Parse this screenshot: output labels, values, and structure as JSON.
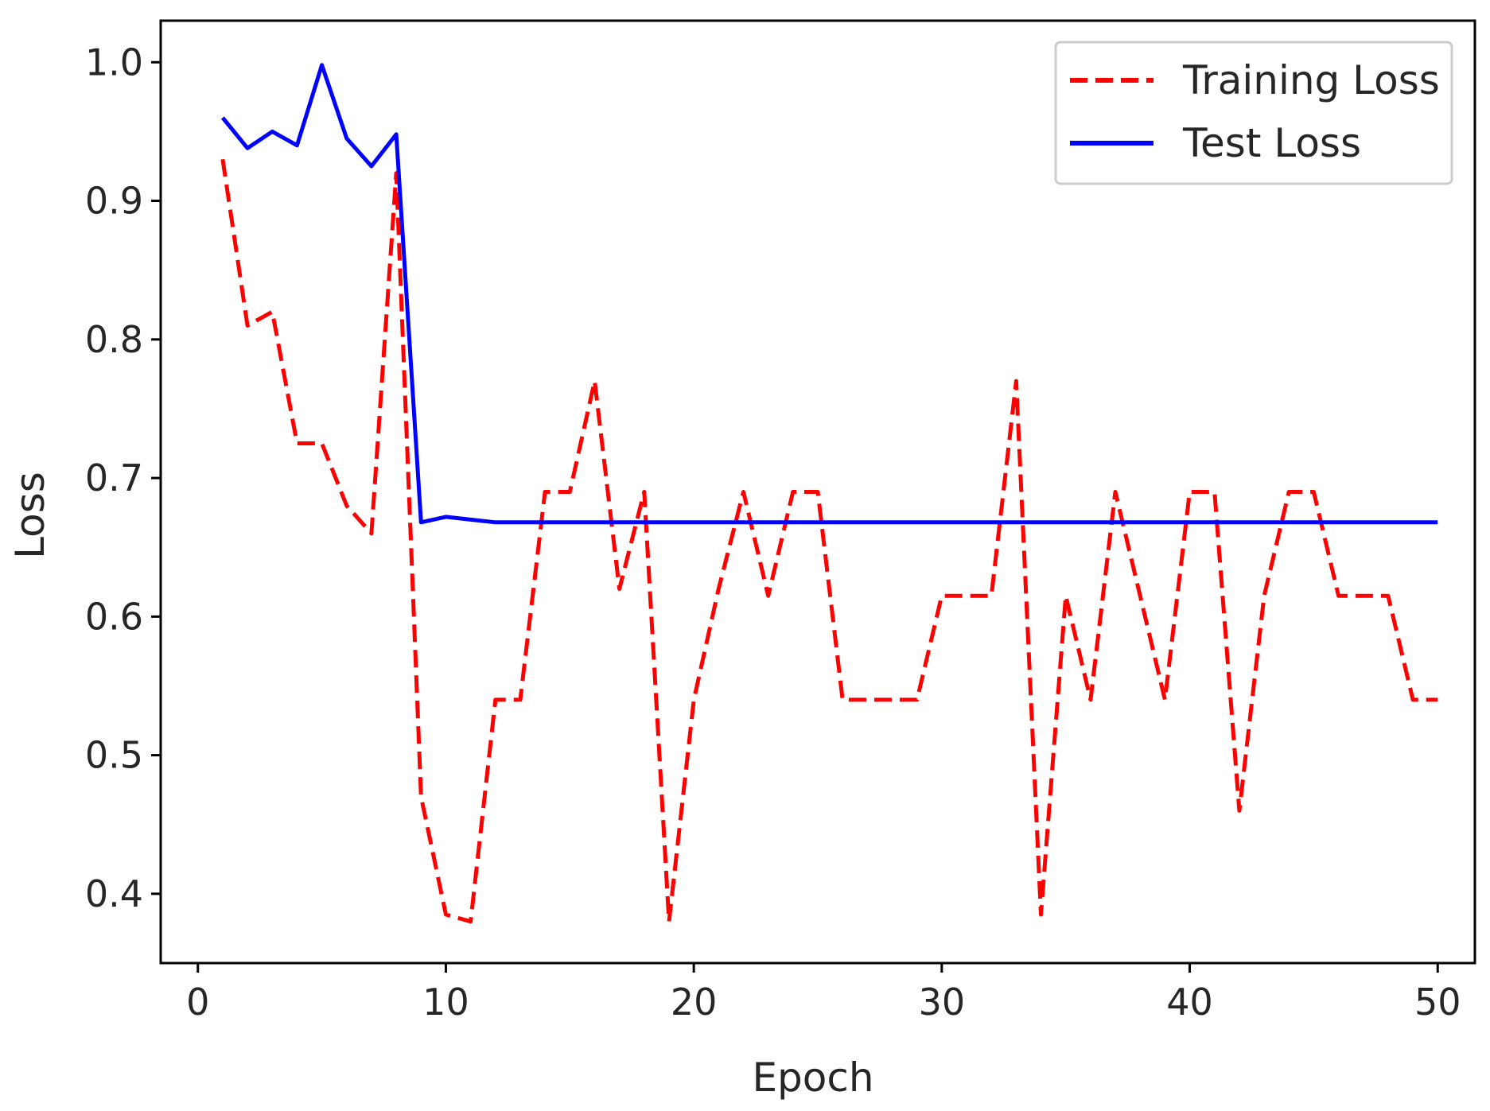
{
  "chart_data": {
    "type": "line",
    "title": "",
    "xlabel": "Epoch",
    "ylabel": "Loss",
    "xlim": [
      -1.5,
      51.5
    ],
    "ylim": [
      0.35,
      1.03
    ],
    "xticks": [
      0,
      10,
      20,
      30,
      40,
      50
    ],
    "xtick_labels": [
      "0",
      "10",
      "20",
      "30",
      "40",
      "50"
    ],
    "yticks": [
      0.4,
      0.5,
      0.6,
      0.7,
      0.8,
      0.9,
      1.0
    ],
    "ytick_labels": [
      "0.4",
      "0.5",
      "0.6",
      "0.7",
      "0.8",
      "0.9",
      "1.0"
    ],
    "grid": false,
    "legend_position": "top-right",
    "x": [
      1,
      2,
      3,
      4,
      5,
      6,
      7,
      8,
      9,
      10,
      11,
      12,
      13,
      14,
      15,
      16,
      17,
      18,
      19,
      20,
      21,
      22,
      23,
      24,
      25,
      26,
      27,
      28,
      29,
      30,
      31,
      32,
      33,
      34,
      35,
      36,
      37,
      38,
      39,
      40,
      41,
      42,
      43,
      44,
      45,
      46,
      47,
      48,
      49,
      50
    ],
    "series": [
      {
        "name": "Training Loss",
        "color": "#ff0000",
        "style": "dashed",
        "values": [
          0.93,
          0.81,
          0.82,
          0.725,
          0.725,
          0.68,
          0.66,
          0.92,
          0.47,
          0.385,
          0.38,
          0.54,
          0.54,
          0.69,
          0.69,
          0.77,
          0.62,
          0.69,
          0.38,
          0.54,
          0.62,
          0.69,
          0.615,
          0.69,
          0.69,
          0.54,
          0.54,
          0.54,
          0.54,
          0.615,
          0.615,
          0.615,
          0.77,
          0.385,
          0.615,
          0.54,
          0.69,
          0.615,
          0.54,
          0.69,
          0.69,
          0.46,
          0.615,
          0.69,
          0.69,
          0.615,
          0.615,
          0.615,
          0.54,
          0.54
        ]
      },
      {
        "name": "Test Loss",
        "color": "#0000ff",
        "style": "solid",
        "values": [
          0.96,
          0.938,
          0.95,
          0.94,
          0.998,
          0.945,
          0.925,
          0.948,
          0.668,
          0.672,
          0.67,
          0.668,
          0.668,
          0.668,
          0.668,
          0.668,
          0.668,
          0.668,
          0.668,
          0.668,
          0.668,
          0.668,
          0.668,
          0.668,
          0.668,
          0.668,
          0.668,
          0.668,
          0.668,
          0.668,
          0.668,
          0.668,
          0.668,
          0.668,
          0.668,
          0.668,
          0.668,
          0.668,
          0.668,
          0.668,
          0.668,
          0.668,
          0.668,
          0.668,
          0.668,
          0.668,
          0.668,
          0.668,
          0.668,
          0.668
        ]
      }
    ]
  }
}
